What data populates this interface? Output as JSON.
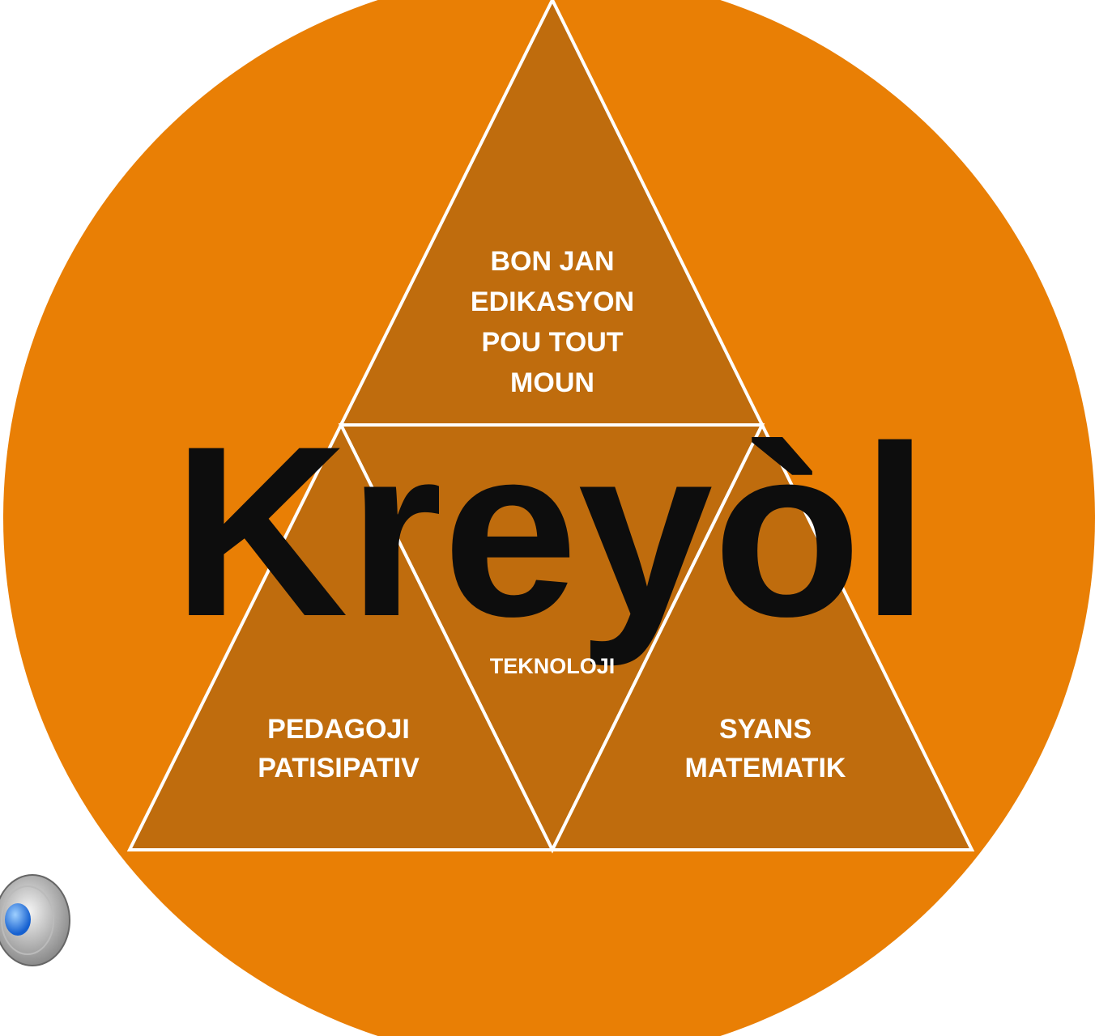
{
  "title": "Kreyòl",
  "nodes": [
    {
      "lines": [
        "BON JAN",
        "EDIKASYON",
        "POU TOUT",
        "MOUN"
      ]
    },
    {
      "lines": [
        "TEKNOLOJI"
      ]
    },
    {
      "lines": [
        "PEDAGOJI",
        "PATISIPATIV"
      ]
    },
    {
      "lines": [
        "SYANS",
        "MATEMATIK"
      ]
    }
  ]
}
